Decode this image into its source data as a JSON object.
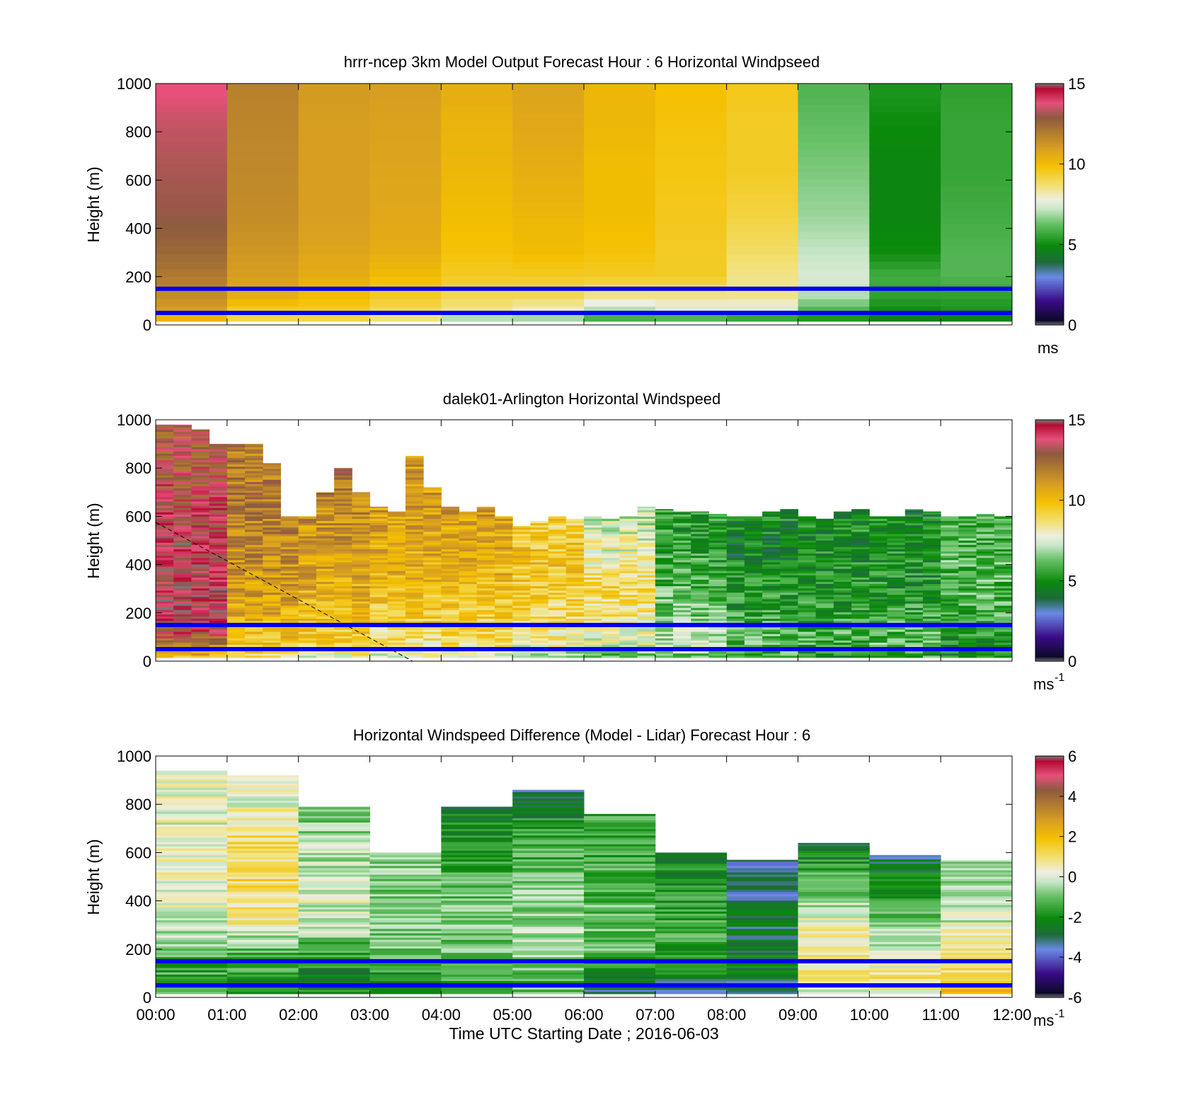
{
  "figure": {
    "xlabel": "Time UTC  Starting Date ; 2016-06-03",
    "x_tick_labels": [
      "00:00",
      "01:00",
      "02:00",
      "03:00",
      "04:00",
      "05:00",
      "06:00",
      "07:00",
      "08:00",
      "09:00",
      "10:00",
      "11:00",
      "12:00"
    ],
    "overlay_line_color": "#0000ee",
    "overlay_line_heights_m": [
      150,
      50
    ]
  },
  "chart_data": [
    {
      "type": "heatmap",
      "title": "hrrr-ncep 3km Model Output   Forecast Hour : 6 Horizontal Windpseed",
      "ylabel": "Height (m)",
      "xlim": [
        0,
        12
      ],
      "ylim": [
        0,
        1000
      ],
      "y_ticks": [
        0,
        200,
        400,
        600,
        800,
        1000
      ],
      "colorbar": {
        "min": 0,
        "max": 15,
        "ticks": [
          0,
          5,
          10,
          15
        ],
        "unit": "ms",
        "unit_sup": ""
      },
      "hours": [
        0,
        1,
        2,
        3,
        4,
        5,
        6,
        7,
        8,
        9,
        10,
        11
      ],
      "profile_heights_m": [
        20,
        60,
        120,
        200,
        300,
        450,
        650,
        850,
        950
      ],
      "windspeed_ms": [
        [
          10.0,
          11.0,
          11.5,
          12.0,
          12.5,
          13.0,
          13.2,
          13.5,
          13.8
        ],
        [
          9.0,
          9.5,
          10.5,
          11.0,
          11.2,
          11.5,
          11.6,
          11.7,
          11.8
        ],
        [
          9.0,
          9.5,
          10.0,
          10.5,
          10.8,
          11.0,
          11.0,
          11.0,
          11.1
        ],
        [
          8.5,
          9.0,
          9.5,
          10.0,
          10.5,
          10.7,
          10.8,
          10.9,
          11.0
        ],
        [
          6.5,
          8.5,
          9.0,
          9.5,
          9.8,
          10.0,
          10.2,
          10.3,
          10.5
        ],
        [
          6.5,
          8.0,
          9.0,
          9.5,
          10.0,
          10.2,
          10.5,
          10.7,
          10.8
        ],
        [
          5.5,
          7.0,
          8.5,
          9.5,
          9.8,
          10.0,
          10.0,
          10.2,
          10.2
        ],
        [
          5.5,
          7.5,
          8.5,
          9.5,
          9.5,
          9.6,
          9.7,
          9.8,
          9.9
        ],
        [
          5.0,
          7.5,
          8.5,
          8.5,
          8.8,
          9.2,
          9.5,
          9.5,
          9.6
        ],
        [
          5.0,
          6.0,
          7.0,
          7.5,
          7.2,
          6.8,
          6.5,
          6.2,
          6.0
        ],
        [
          4.5,
          5.0,
          5.5,
          5.8,
          5.0,
          4.8,
          4.8,
          5.0,
          5.2
        ],
        [
          4.5,
          5.2,
          5.5,
          6.0,
          6.0,
          5.8,
          5.6,
          5.6,
          5.5
        ]
      ]
    },
    {
      "type": "heatmap",
      "title": "dalek01-Arlington  Horizontal Windspeed",
      "ylabel": "Height (m)",
      "xlim": [
        0,
        12
      ],
      "ylim": [
        0,
        1000
      ],
      "y_ticks": [
        0,
        200,
        400,
        600,
        800,
        1000
      ],
      "colorbar": {
        "min": 0,
        "max": 15,
        "ticks": [
          0,
          5,
          10,
          15
        ],
        "unit": "ms",
        "unit_sup": "-1"
      },
      "time_bin_hours": 0.25,
      "profile_heights_m": [
        20,
        60,
        120,
        200,
        300,
        450,
        650,
        850,
        950
      ],
      "data_top_m": [
        980,
        980,
        960,
        900,
        900,
        900,
        820,
        600,
        600,
        700,
        800,
        700,
        640,
        620,
        850,
        720,
        640,
        620,
        640,
        600,
        560,
        580,
        600,
        590,
        600,
        590,
        600,
        640,
        630,
        620,
        620,
        610,
        600,
        600,
        620,
        630,
        600,
        590,
        620,
        630,
        600,
        600,
        630,
        620,
        600,
        600,
        610,
        600
      ],
      "windspeed_ms": [
        [
          10.0,
          12.0,
          13.5,
          14.0,
          14.0,
          14.0,
          13.5,
          13.0,
          13.0
        ],
        [
          9.0,
          9.5,
          10.0,
          10.5,
          11.0,
          11.5,
          12.0,
          12.0,
          12.0
        ],
        [
          8.0,
          9.0,
          9.5,
          10.0,
          10.5,
          11.0,
          11.5,
          12.5,
          12.5
        ],
        [
          7.5,
          8.5,
          9.0,
          9.5,
          10.0,
          10.5,
          11.0,
          11.0,
          11.0
        ],
        [
          7.0,
          8.5,
          9.0,
          9.5,
          10.0,
          10.5,
          11.0,
          12.0,
          12.0
        ],
        [
          6.5,
          8.0,
          8.5,
          9.0,
          9.5,
          9.8,
          9.0,
          8.0,
          8.0
        ],
        [
          6.0,
          7.5,
          8.0,
          8.5,
          9.0,
          8.0,
          7.0,
          6.5,
          6.5
        ],
        [
          6.0,
          7.0,
          7.0,
          6.5,
          6.0,
          5.5,
          5.2,
          5.0,
          5.0
        ],
        [
          5.5,
          6.0,
          6.0,
          5.5,
          5.2,
          4.8,
          4.8,
          4.5,
          4.5
        ],
        [
          5.0,
          5.5,
          5.8,
          5.5,
          5.0,
          5.0,
          5.0,
          5.0,
          5.0
        ],
        [
          5.5,
          6.0,
          6.0,
          5.5,
          5.2,
          5.0,
          4.8,
          4.8,
          4.8
        ],
        [
          5.0,
          5.0,
          5.5,
          5.8,
          6.0,
          6.0,
          6.0,
          6.0,
          6.0
        ]
      ],
      "dashed_line": {
        "from": [
          0,
          575
        ],
        "to": [
          3.6,
          0
        ],
        "color": "#000000"
      }
    },
    {
      "type": "heatmap",
      "title": "Horizontal Windspeed Difference (Model - Lidar) Forecast Hour : 6",
      "ylabel": "Height (m)",
      "xlim": [
        0,
        12
      ],
      "ylim": [
        0,
        1000
      ],
      "y_ticks": [
        0,
        200,
        400,
        600,
        800,
        1000
      ],
      "colorbar": {
        "min": -6,
        "max": 6,
        "ticks": [
          -6,
          -4,
          -2,
          0,
          2,
          4,
          6
        ],
        "unit": "ms",
        "unit_sup": "-1"
      },
      "hours": [
        0,
        1,
        2,
        3,
        4,
        5,
        6,
        7,
        8,
        9,
        10,
        11
      ],
      "data_top_m": [
        940,
        920,
        790,
        600,
        790,
        860,
        760,
        600,
        570,
        640,
        590,
        570
      ],
      "profile_heights_m": [
        20,
        60,
        120,
        200,
        300,
        450,
        650,
        850,
        950
      ],
      "difference_ms": [
        [
          -1.0,
          -1.5,
          -1.5,
          -1.0,
          0.0,
          0.2,
          0.2,
          0.2,
          0.5
        ],
        [
          -1.5,
          -2.0,
          -1.5,
          -1.2,
          0.5,
          1.2,
          1.2,
          0.0,
          0.0
        ],
        [
          -2.0,
          -2.5,
          -2.0,
          -1.5,
          0.0,
          0.0,
          -0.5,
          -1.0,
          -1.0
        ],
        [
          -1.5,
          -2.0,
          -1.5,
          -1.0,
          -0.8,
          -0.8,
          -0.5,
          -0.5,
          -0.5
        ],
        [
          -1.5,
          -1.5,
          -1.0,
          -1.0,
          -0.8,
          -1.0,
          -2.0,
          -2.5,
          -2.5
        ],
        [
          -1.0,
          -1.5,
          -0.8,
          -0.5,
          -0.5,
          -0.8,
          -1.5,
          -2.8,
          -2.8
        ],
        [
          -3.0,
          -3.0,
          -1.5,
          -1.2,
          -1.0,
          -1.2,
          -1.5,
          -1.5,
          -1.5
        ],
        [
          -3.0,
          -3.0,
          -2.0,
          -1.5,
          -1.5,
          -1.8,
          -2.5,
          -2.5,
          -2.5
        ],
        [
          -2.5,
          -3.0,
          -2.5,
          -2.5,
          -2.8,
          -3.2,
          -3.0,
          -3.0,
          -3.0
        ],
        [
          0.0,
          0.5,
          0.5,
          0.8,
          0.5,
          -1.0,
          -2.5,
          -2.5,
          -2.5
        ],
        [
          0.5,
          0.8,
          0.5,
          0.0,
          -0.5,
          -2.0,
          -3.5,
          -3.5,
          -3.5
        ],
        [
          1.8,
          1.5,
          0.8,
          0.5,
          0.0,
          -0.5,
          -1.0,
          -1.0,
          -1.0
        ]
      ]
    }
  ]
}
